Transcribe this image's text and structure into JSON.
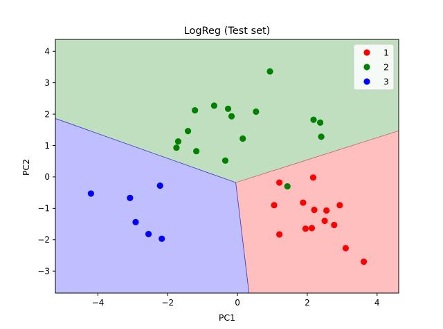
{
  "chart_data": {
    "type": "scatter",
    "title": "LogReg (Test set)",
    "xlabel": "PC1",
    "ylabel": "PC2",
    "xlim": [
      -5.22,
      4.62
    ],
    "ylim": [
      -3.7,
      4.38
    ],
    "x_ticks": [
      -4,
      -2,
      0,
      2,
      4
    ],
    "y_ticks": [
      -3,
      -2,
      -1,
      0,
      1,
      2,
      3,
      4
    ],
    "grid": false,
    "legend_position": "top-right",
    "decision_regions": {
      "junction": [
        -0.05,
        -0.18
      ],
      "boundaries": {
        "region_1_vs_2": [
          [
            -0.05,
            -0.18
          ],
          [
            4.62,
            1.47
          ]
        ],
        "region_2_vs_3": [
          [
            -0.05,
            -0.18
          ],
          [
            -5.22,
            1.86
          ]
        ],
        "region_1_vs_3": [
          [
            -0.05,
            -0.18
          ],
          [
            0.33,
            -3.7
          ]
        ]
      },
      "colors": {
        "1": "#ffbfbf",
        "2": "#bfdfbf",
        "3": "#bfbfff"
      }
    },
    "series": [
      {
        "name": "1",
        "color": "#ff0000",
        "points": [
          [
            1.2,
            -0.18
          ],
          [
            2.17,
            -0.02
          ],
          [
            1.05,
            -0.9
          ],
          [
            1.88,
            -0.82
          ],
          [
            2.2,
            -1.05
          ],
          [
            2.55,
            -1.07
          ],
          [
            2.93,
            -0.9
          ],
          [
            2.5,
            -1.4
          ],
          [
            1.95,
            -1.65
          ],
          [
            2.13,
            -1.63
          ],
          [
            2.77,
            -1.53
          ],
          [
            1.2,
            -1.83
          ],
          [
            3.1,
            -2.27
          ],
          [
            3.62,
            -2.7
          ]
        ]
      },
      {
        "name": "2",
        "color": "#008000",
        "points": [
          [
            0.93,
            3.36
          ],
          [
            -1.22,
            2.12
          ],
          [
            -0.67,
            2.27
          ],
          [
            -0.27,
            2.17
          ],
          [
            -0.17,
            1.93
          ],
          [
            0.53,
            2.08
          ],
          [
            2.18,
            1.82
          ],
          [
            2.37,
            1.73
          ],
          [
            -1.42,
            1.46
          ],
          [
            -1.7,
            1.13
          ],
          [
            -1.75,
            0.93
          ],
          [
            -1.18,
            0.82
          ],
          [
            0.15,
            1.22
          ],
          [
            2.4,
            1.28
          ],
          [
            -0.35,
            0.52
          ],
          [
            1.43,
            -0.3
          ]
        ]
      },
      {
        "name": "3",
        "color": "#0000ff",
        "points": [
          [
            -4.2,
            -0.53
          ],
          [
            -2.22,
            -0.28
          ],
          [
            -3.08,
            -0.67
          ],
          [
            -2.92,
            -1.44
          ],
          [
            -2.55,
            -1.82
          ],
          [
            -2.17,
            -1.97
          ]
        ]
      }
    ]
  }
}
